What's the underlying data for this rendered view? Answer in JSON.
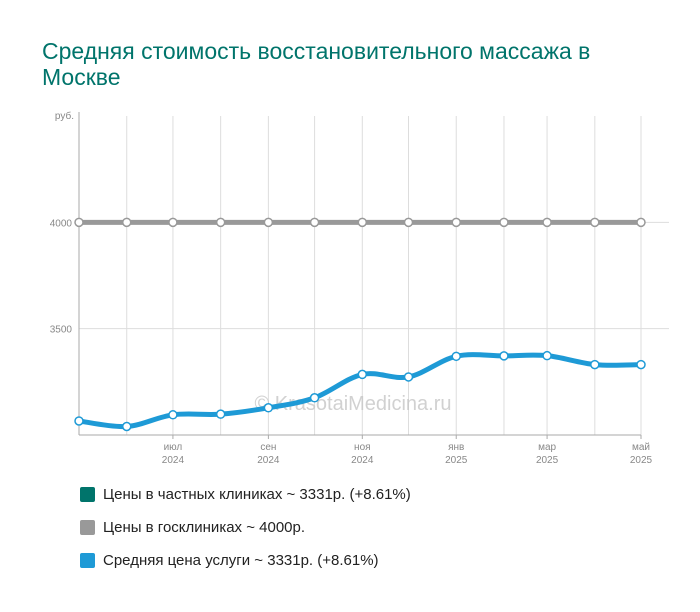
{
  "chart_data": {
    "type": "line",
    "title": "Средняя стоимость восстановительного массажа в Москве",
    "y_unit": "руб.",
    "ylim": [
      3000,
      4500
    ],
    "yticks": [
      3500,
      4000
    ],
    "grid": true,
    "x": [
      "2024-05-15",
      "2024-06-15",
      "2024-07-15",
      "2024-08-15",
      "2024-09-15",
      "2024-10-15",
      "2024-11-15",
      "2024-12-15",
      "2025-01-15",
      "2025-02-15",
      "2025-03-15",
      "2025-04-15",
      "2025-05-15"
    ],
    "x_tick_labels": [
      {
        "month": "июл",
        "year": "2024"
      },
      {
        "month": "сен",
        "year": "2024"
      },
      {
        "month": "ноя",
        "year": "2024"
      },
      {
        "month": "янв",
        "year": "2025"
      },
      {
        "month": "мар",
        "year": "2025"
      },
      {
        "month": "май",
        "year": "2025"
      }
    ],
    "series": [
      {
        "name": "Цены в госклиниках",
        "color": "#999999",
        "values": [
          4000,
          4000,
          4000,
          4000,
          4000,
          4000,
          4000,
          4000,
          4000,
          4000,
          4000,
          4000,
          4000
        ]
      },
      {
        "name": "Средняя цена услуги",
        "color": "#1e9ad6",
        "values": [
          3066,
          3040,
          3095,
          3098,
          3128,
          3175,
          3285,
          3273,
          3370,
          3372,
          3373,
          3331,
          3331
        ]
      }
    ],
    "legend": [
      {
        "label": "Цены в частных клиниках ~ 3331р. (+8.61%)",
        "color": "#00746b"
      },
      {
        "label": "Цены в госклиниках ~ 4000р.",
        "color": "#999999"
      },
      {
        "label": "Средняя цена услуги ~ 3331р. (+8.61%)",
        "color": "#1e9ad6"
      }
    ],
    "legend_position": "bottom-left"
  },
  "watermark": "© KrasotaiMedicina.ru"
}
